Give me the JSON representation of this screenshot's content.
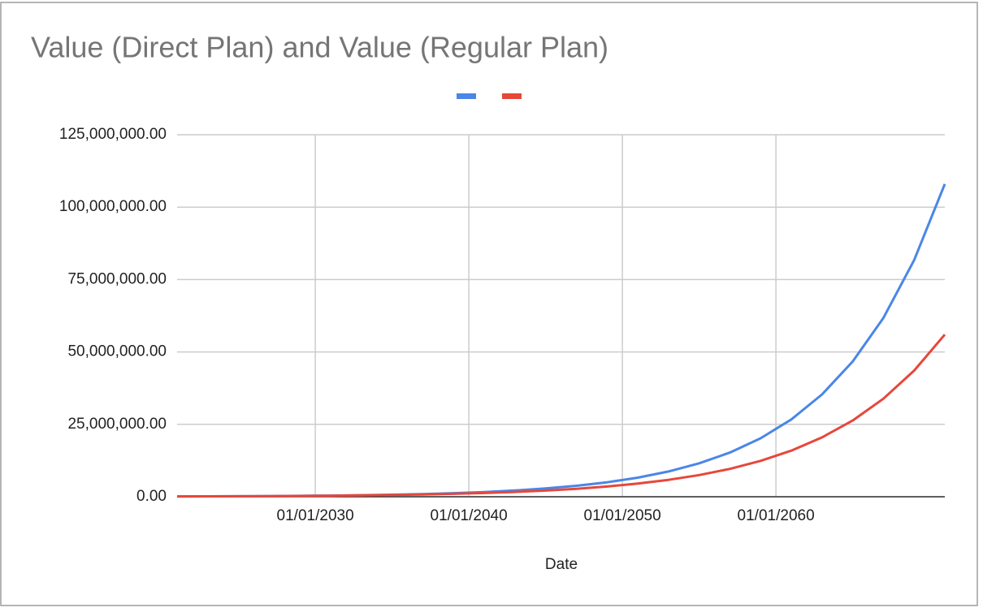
{
  "chart_data": {
    "type": "line",
    "title": "Value (Direct Plan) and Value (Regular Plan)",
    "x_label": "Date",
    "x": [
      2021,
      2023,
      2025,
      2027,
      2029,
      2031,
      2033,
      2035,
      2037,
      2039,
      2041,
      2043,
      2045,
      2047,
      2049,
      2051,
      2053,
      2055,
      2057,
      2059,
      2061,
      2063,
      2065,
      2067,
      2069,
      2071
    ],
    "series": [
      {
        "color": "#4a86e8",
        "values": [
          99700,
          131800,
          174300,
          230500,
          304900,
          403100,
          533300,
          705000,
          932600,
          1233000,
          1631000,
          2157000,
          2853000,
          3772000,
          4991000,
          6598000,
          8727000,
          11540000,
          15260000,
          20190000,
          26690000,
          35310000,
          46690000,
          61750000,
          81660000,
          108000000
        ]
      },
      {
        "color": "#e6473b",
        "values": [
          104000,
          133800,
          172000,
          221300,
          284600,
          366000,
          470600,
          605100,
          778200,
          1001000,
          1287000,
          1655000,
          2128000,
          2737000,
          3520000,
          4527000,
          5821000,
          7486000,
          9627000,
          12380000,
          15920000,
          20480000,
          26330000,
          33860000,
          43550000,
          56000000
        ]
      }
    ],
    "xlim": [
      2021,
      2071
    ],
    "xticks": [
      {
        "value": 2030,
        "label": "01/01/2030"
      },
      {
        "value": 2040,
        "label": "01/01/2040"
      },
      {
        "value": 2050,
        "label": "01/01/2050"
      },
      {
        "value": 2060,
        "label": "01/01/2060"
      }
    ],
    "ylim": [
      0,
      125000000
    ],
    "yticks": [
      {
        "value": 0,
        "label": "0.00"
      },
      {
        "value": 25000000,
        "label": "25,000,000.00"
      },
      {
        "value": 50000000,
        "label": "50,000,000.00"
      },
      {
        "value": 75000000,
        "label": "75,000,000.00"
      },
      {
        "value": 100000000,
        "label": "100,000,000.00"
      },
      {
        "value": 125000000,
        "label": "125,000,000.00"
      }
    ],
    "grid": true
  }
}
